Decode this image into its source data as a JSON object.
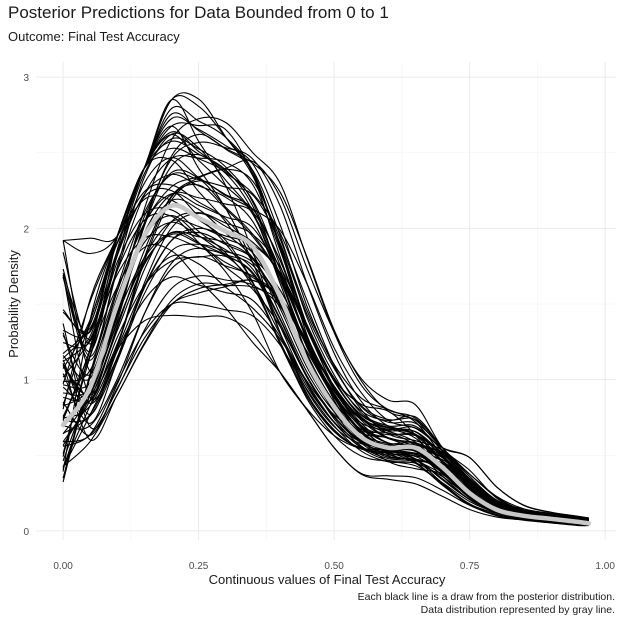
{
  "chart_data": {
    "type": "line",
    "title": "Posterior Predictions for Data Bounded from 0 to 1",
    "subtitle": "Outcome: Final Test Accuracy",
    "xlabel": "Continuous values of Final Test Accuracy",
    "ylabel": "Probability Density",
    "caption_line1": "Each black line is a draw from the posterior distribution.",
    "caption_line2": "Data distribution represented by gray line.",
    "xlim": [
      -0.05,
      1.02
    ],
    "ylim": [
      -0.06,
      3.1
    ],
    "x_ticks": [
      0.0,
      0.25,
      0.5,
      0.75,
      1.0
    ],
    "x_tick_labels": [
      "0.00",
      "0.25",
      "0.50",
      "0.75",
      "1.00"
    ],
    "y_ticks": [
      0,
      1,
      2,
      3
    ],
    "y_tick_labels": [
      "0",
      "1",
      "2",
      "3"
    ],
    "grid": true,
    "x": [
      0.0,
      0.05,
      0.1,
      0.15,
      0.2,
      0.25,
      0.3,
      0.35,
      0.4,
      0.45,
      0.5,
      0.55,
      0.6,
      0.65,
      0.7,
      0.75,
      0.8,
      0.85,
      0.9,
      0.95,
      0.97
    ],
    "observed_data_line": {
      "name": "Data distribution",
      "color": "#c8c8c8",
      "values": [
        0.7,
        0.95,
        1.5,
        1.95,
        2.15,
        2.07,
        1.98,
        1.88,
        1.55,
        1.12,
        0.82,
        0.62,
        0.55,
        0.55,
        0.42,
        0.25,
        0.14,
        0.1,
        0.08,
        0.06,
        0.05
      ]
    },
    "posterior_draws_count": 60,
    "posterior_draw_color": "#000000",
    "posterior_draw_envelope": {
      "x": [
        0.0,
        0.1,
        0.2,
        0.25,
        0.3,
        0.4,
        0.5,
        0.55,
        0.6,
        0.7,
        0.8,
        0.9,
        0.97
      ],
      "min": [
        0.2,
        0.9,
        1.35,
        1.4,
        1.3,
        1.05,
        0.55,
        0.3,
        0.15,
        0.03,
        0.01,
        0.0,
        0.0
      ],
      "max": [
        1.92,
        1.95,
        2.85,
        3.02,
        2.7,
        2.3,
        1.7,
        1.7,
        1.3,
        0.55,
        0.42,
        0.2,
        0.13
      ]
    }
  }
}
